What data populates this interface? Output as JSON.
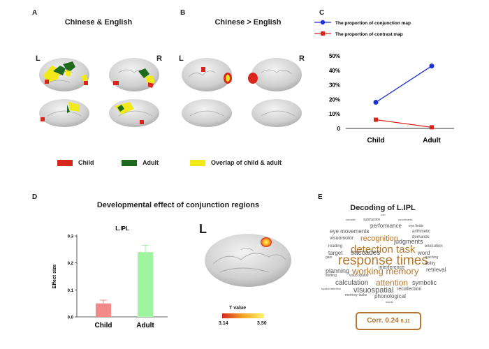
{
  "panels": {
    "A": {
      "letter": "A",
      "title": "Chinese & English",
      "hemi_left": "L",
      "hemi_right": "R"
    },
    "B": {
      "letter": "B",
      "title": "Chinese > English",
      "hemi_left": "L",
      "hemi_right": "R"
    },
    "C": {
      "letter": "C"
    },
    "D": {
      "letter": "D",
      "title": "Developmental effect of conjunction regions"
    },
    "E": {
      "letter": "E",
      "title": "Decoding of  L.IPL"
    }
  },
  "legend_ab": {
    "items": [
      {
        "label": "Child",
        "color": "#d9261c"
      },
      {
        "label": "Adult",
        "color": "#1e6b1e"
      },
      {
        "label": "Overlap of child & adult",
        "color": "#f2ea18"
      }
    ]
  },
  "brain_d": {
    "hemi": "L",
    "colorbar_title": "T value",
    "colorbar_min": "3.14",
    "colorbar_max": "3.50"
  },
  "wordcloud": {
    "words": [
      {
        "text": "corr",
        "size": 4,
        "color": "#555"
      },
      {
        "text": "somatic",
        "size": 4,
        "color": "#555"
      },
      {
        "text": "subtraction",
        "size": 5,
        "color": "#555"
      },
      {
        "text": "coordinates",
        "size": 4,
        "color": "#555"
      },
      {
        "text": "performance",
        "size": 8,
        "color": "#555"
      },
      {
        "text": "eye fields",
        "size": 5,
        "color": "#555"
      },
      {
        "text": "arithmetic",
        "size": 6,
        "color": "#555"
      },
      {
        "text": "eye movements",
        "size": 8,
        "color": "#555"
      },
      {
        "text": "demands",
        "size": 6,
        "color": "#555"
      },
      {
        "text": "visuomotor",
        "size": 7,
        "color": "#555"
      },
      {
        "text": "recognition",
        "size": 11,
        "color": "#b5772f"
      },
      {
        "text": "judgments",
        "size": 9,
        "color": "#555"
      },
      {
        "text": "reading",
        "size": 6,
        "color": "#555"
      },
      {
        "text": "detection task",
        "size": 15,
        "color": "#b5772f"
      },
      {
        "text": "execution",
        "size": 6,
        "color": "#555"
      },
      {
        "text": "target",
        "size": 8,
        "color": "#555"
      },
      {
        "text": "saccades",
        "size": 10,
        "color": "#555"
      },
      {
        "text": "word",
        "size": 8,
        "color": "#555"
      },
      {
        "text": "gain",
        "size": 5,
        "color": "#555"
      },
      {
        "text": "response times",
        "size": 19,
        "color": "#b5772f"
      },
      {
        "text": "reaching",
        "size": 5,
        "color": "#555"
      },
      {
        "text": "ability",
        "size": 6,
        "color": "#555"
      },
      {
        "text": "planning",
        "size": 9,
        "color": "#555"
      },
      {
        "text": "working memory",
        "size": 13,
        "color": "#b5772f"
      },
      {
        "text": "interference",
        "size": 7,
        "color": "#555"
      },
      {
        "text": "retrieval",
        "size": 8,
        "color": "#555"
      },
      {
        "text": "shifting",
        "size": 5,
        "color": "#555"
      },
      {
        "text": "visuo spatial",
        "size": 5,
        "color": "#555"
      },
      {
        "text": "calculation",
        "size": 10,
        "color": "#555"
      },
      {
        "text": "attention",
        "size": 12,
        "color": "#b5772f"
      },
      {
        "text": "symbolic",
        "size": 9,
        "color": "#555"
      },
      {
        "text": "visuospatial",
        "size": 11,
        "color": "#555"
      },
      {
        "text": "recollection",
        "size": 7,
        "color": "#555"
      },
      {
        "text": "spatial attention",
        "size": 4,
        "color": "#555"
      },
      {
        "text": "phonological",
        "size": 8,
        "color": "#555"
      },
      {
        "text": "memory tasks",
        "size": 5,
        "color": "#555"
      },
      {
        "text": "words",
        "size": 4,
        "color": "#555"
      }
    ],
    "corr_label": "Corr.",
    "corr_value": "0.24",
    "corr_sub": "0.11"
  },
  "chart_data": [
    {
      "type": "line",
      "categories": [
        "Child",
        "Adult"
      ],
      "yticks": [
        "0",
        "10%",
        "20%",
        "30%",
        "40%",
        "50%"
      ],
      "ylim": [
        0,
        50
      ],
      "series": [
        {
          "name": "The proportion of conjunction map",
          "values": [
            18,
            43
          ],
          "color": "#1f2fd6",
          "marker": "circle"
        },
        {
          "name": "The proportion of contrast map",
          "values": [
            6,
            0.8
          ],
          "color": "#d9261c",
          "marker": "square"
        }
      ]
    },
    {
      "type": "bar",
      "title": "L.IPL",
      "ylabel": "Effect size",
      "categories": [
        "Child",
        "Adult"
      ],
      "values": [
        0.05,
        0.24
      ],
      "errors": [
        0.012,
        0.025
      ],
      "colors": [
        "#f28a8a",
        "#9ff59f"
      ],
      "yticks": [
        "0.0",
        "0.1",
        "0.2",
        "0.3"
      ],
      "ylim": [
        0,
        0.3
      ]
    }
  ]
}
